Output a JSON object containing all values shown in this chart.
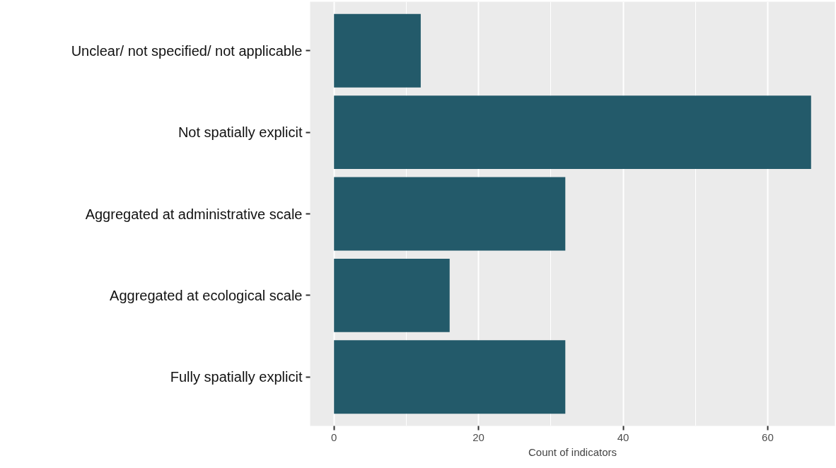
{
  "chart_data": {
    "type": "bar",
    "orientation": "horizontal",
    "categories": [
      "Unclear/ not specified/ not applicable",
      "Not spatially explicit",
      "Aggregated at administrative scale",
      "Aggregated at ecological scale",
      "Fully spatially explicit"
    ],
    "values": [
      12,
      66,
      32,
      16,
      32
    ],
    "color": "#235a6a",
    "xlabel": "Count of indicators",
    "xlim": [
      -3.3,
      69.3
    ],
    "xticks": [
      0,
      20,
      40,
      60
    ],
    "grid": "x"
  }
}
